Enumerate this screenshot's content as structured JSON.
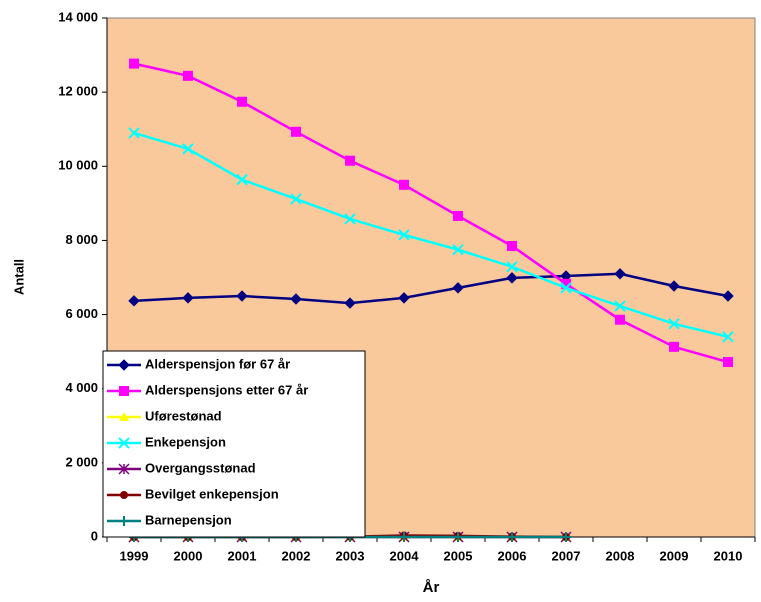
{
  "chart_data": {
    "type": "line",
    "x_label": "År",
    "y_label": "Antall",
    "categories": [
      "1999",
      "2000",
      "2001",
      "2002",
      "2003",
      "2004",
      "2005",
      "2006",
      "2007",
      "2008",
      "2009",
      "2010"
    ],
    "ylim": [
      0,
      14000
    ],
    "yticks": [
      0,
      {
        "value": 2000,
        "label": "2 000"
      },
      {
        "value": 4000,
        "label": "4 000"
      },
      {
        "value": 6000,
        "label": "6 000"
      },
      {
        "value": 8000,
        "label": "8 000"
      },
      {
        "value": 10000,
        "label": "10 000"
      },
      {
        "value": 12000,
        "label": "12 000"
      },
      {
        "value": 14000,
        "label": "14 000"
      }
    ],
    "plot_background": "#f9c99c",
    "legend": "bottom-left",
    "series": [
      {
        "name": "Alderspensjon før 67 år",
        "color": "#000080",
        "marker": "diamond",
        "values": [
          6370,
          6450,
          6500,
          6420,
          6310,
          6450,
          6720,
          6990,
          7040,
          7100,
          6770,
          6500
        ]
      },
      {
        "name": "Alderspensjons etter 67 år",
        "color": "#ff00ff",
        "marker": "square",
        "values": [
          12770,
          12440,
          11740,
          10930,
          10150,
          9500,
          8660,
          7850,
          6830,
          5860,
          5130,
          4720
        ]
      },
      {
        "name": "Uførestønad",
        "color": "#ffff00",
        "marker": "triangle",
        "values": [
          0,
          0,
          0,
          0,
          0,
          0,
          0,
          0,
          0,
          null,
          null,
          null
        ]
      },
      {
        "name": "Enkepensjon",
        "color": "#00ffff",
        "marker": "x",
        "values": [
          10900,
          10470,
          9640,
          9120,
          8580,
          8150,
          7750,
          7290,
          6720,
          6230,
          5750,
          5400
        ]
      },
      {
        "name": "Overgangsstønad",
        "color": "#800080",
        "marker": "star",
        "values": [
          0,
          0,
          0,
          0,
          0,
          0,
          0,
          0,
          0,
          null,
          null,
          null
        ]
      },
      {
        "name": "Bevilget enkepensjon",
        "color": "#800000",
        "marker": "circle",
        "values": [
          0,
          0,
          0,
          0,
          10,
          40,
          30,
          10,
          0,
          null,
          null,
          null
        ]
      },
      {
        "name": "Barnepensjon",
        "color": "#008080",
        "marker": "plus",
        "values": [
          0,
          0,
          0,
          0,
          0,
          0,
          0,
          0,
          0,
          null,
          null,
          null
        ]
      }
    ]
  }
}
